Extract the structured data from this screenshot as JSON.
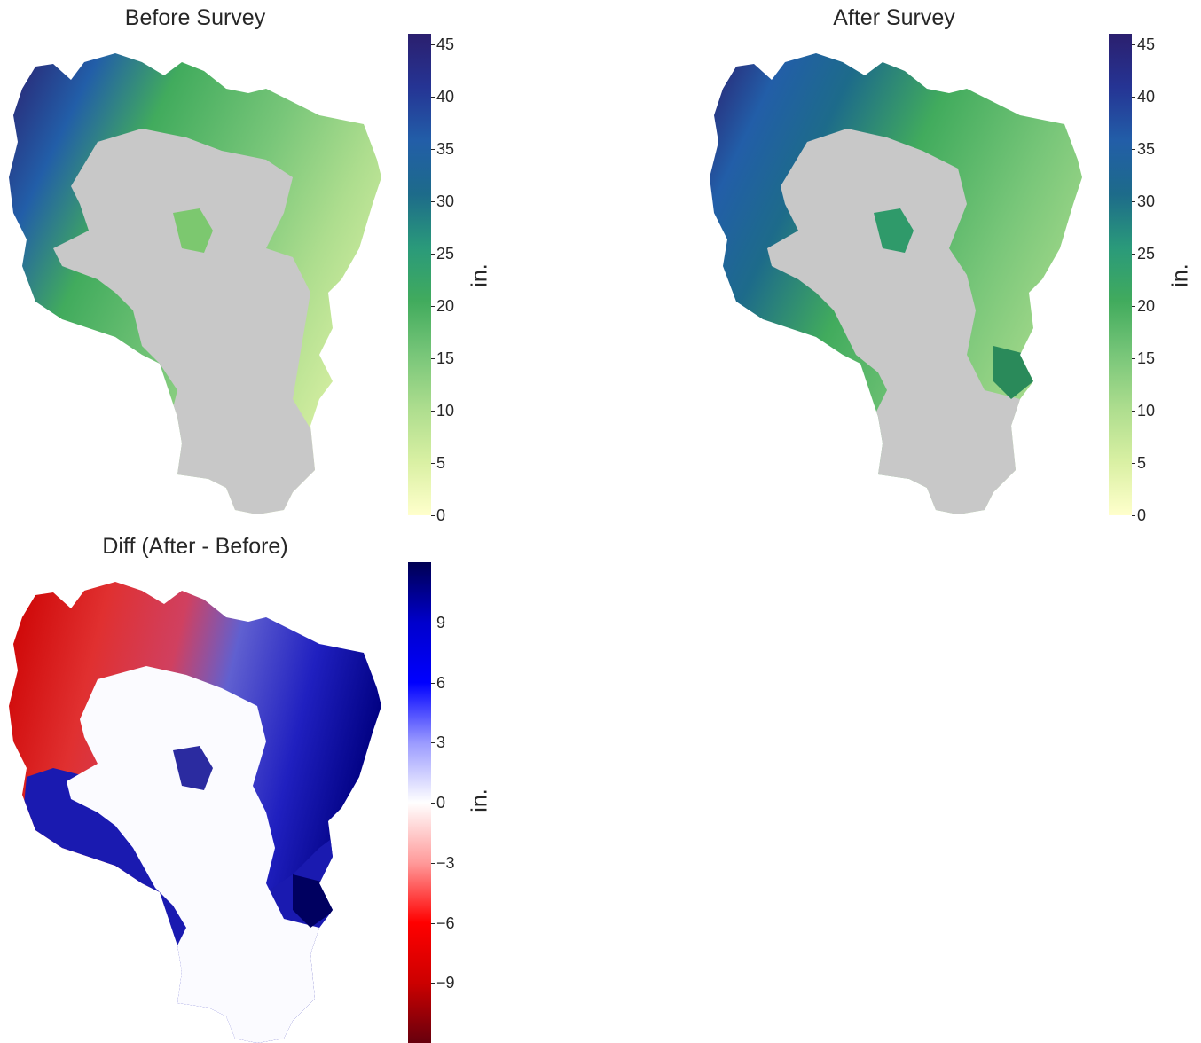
{
  "panels": {
    "before": {
      "title": "Before Survey",
      "unit": "in."
    },
    "after": {
      "title": "After Survey",
      "unit": "in."
    },
    "diff": {
      "title": "Diff (After - Before)",
      "unit": "in."
    }
  },
  "colorbars": {
    "snow": {
      "min": 0,
      "max": 46,
      "ticks": [
        "0",
        "5",
        "10",
        "15",
        "20",
        "25",
        "30",
        "35",
        "40",
        "45"
      ],
      "colors": [
        "#ffffcc",
        "#d9f0a3",
        "#addd8e",
        "#78c679",
        "#41ab5d",
        "#238443",
        "#1d6b8a",
        "#225ea8",
        "#253494",
        "#2b1f6e"
      ]
    },
    "diff": {
      "min": -12,
      "max": 12,
      "ticks": [
        "−9",
        "−6",
        "−3",
        "0",
        "3",
        "6",
        "9"
      ],
      "tick_values": [
        -9,
        -6,
        -3,
        0,
        3,
        6,
        9
      ],
      "colors": [
        "#67000d",
        "#cc0000",
        "#ff0000",
        "#ff9a9a",
        "#ffffff",
        "#9a9aff",
        "#0000ff",
        "#0000cc",
        "#000052"
      ]
    }
  },
  "colors": {
    "no_data": "#c8c8c8",
    "background": "#ffffff"
  }
}
